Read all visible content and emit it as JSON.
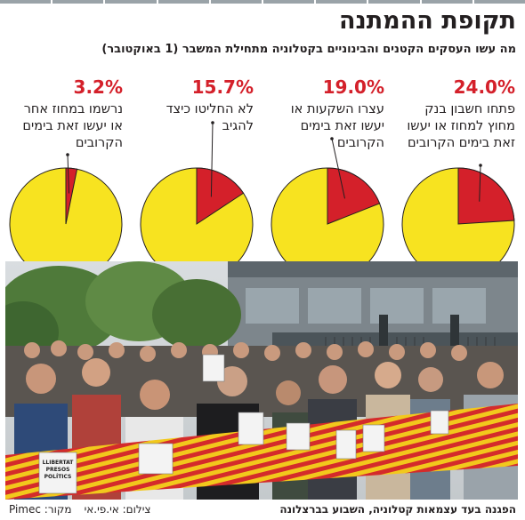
{
  "header": {
    "title": "תקופת ההמתנה",
    "subtitle": "מה עשו העסקים הקטנים והבינוניים בקטלוניה מתחילת המשבר (1 באוקטובר)"
  },
  "colors": {
    "slice": "#d4202a",
    "rest": "#f7e320",
    "stroke": "#231f20"
  },
  "chart_data": {
    "type": "pie",
    "title": "תקופת ההמתנה",
    "subtitle": "מה עשו העסקים הקטנים והבינוניים בקטלוניה מתחילת המשבר (1 באוקטובר)",
    "unit": "%",
    "slices": [
      {
        "value": 24.0,
        "label": "24.0%",
        "description": "פתחו חשבון בנק מחוץ למחוז או יעשו זאת בימים הקרובים"
      },
      {
        "value": 19.0,
        "label": "19.0%",
        "description": "עצרו השקעות או יעשו זאת בימים הקרובים"
      },
      {
        "value": 15.7,
        "label": "15.7%",
        "description": "לא החליטו כיצד להגיב"
      },
      {
        "value": 3.2,
        "label": "3.2%",
        "description": "נרשמו במחוז אחר או יעשו זאת בימים הקרובים"
      }
    ]
  },
  "photo": {
    "banner_text": [
      "LLIBERTAT",
      "PRESOS",
      "POLÍTICS"
    ]
  },
  "footer": {
    "caption": "הפגנה בעד עצמאות קטלוניה, השבוע בברצלונה",
    "source": "מקור: Pimec",
    "photo_credit": "צילום: אי.פי.אי"
  }
}
